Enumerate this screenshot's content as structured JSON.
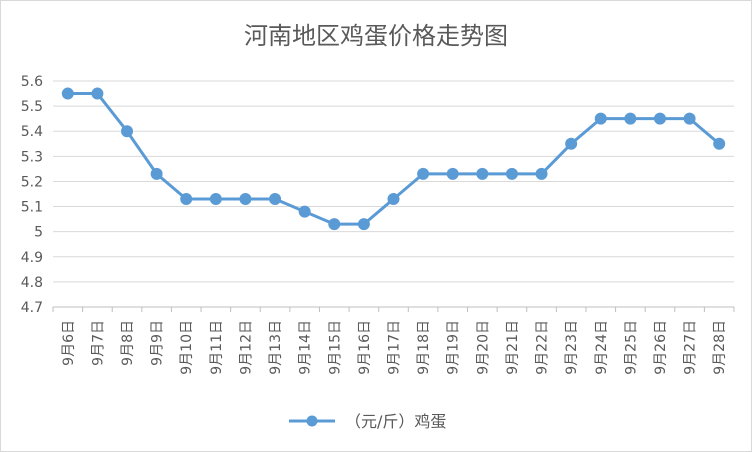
{
  "chart_data": {
    "type": "line",
    "title": "河南地区鸡蛋价格走势图",
    "xlabel": "",
    "ylabel": "",
    "ylim": [
      4.7,
      5.6
    ],
    "yticks": [
      "5.6",
      "5.5",
      "5.4",
      "5.3",
      "5.2",
      "5.1",
      "5",
      "4.9",
      "4.8",
      "4.7"
    ],
    "categories": [
      "9月6日",
      "9月7日",
      "9月8日",
      "9月9日",
      "9月10日",
      "9月11日",
      "9月12日",
      "9月13日",
      "9月14日",
      "9月15日",
      "9月16日",
      "9月17日",
      "9月18日",
      "9月19日",
      "9月20日",
      "9月21日",
      "9月22日",
      "9月23日",
      "9月24日",
      "9月25日",
      "9月26日",
      "9月27日",
      "9月28日"
    ],
    "series": [
      {
        "name": "（元/斤）鸡蛋",
        "values": [
          5.55,
          5.55,
          5.4,
          5.23,
          5.13,
          5.13,
          5.13,
          5.13,
          5.08,
          5.03,
          5.03,
          5.13,
          5.23,
          5.23,
          5.23,
          5.23,
          5.23,
          5.35,
          5.45,
          5.45,
          5.45,
          5.45,
          5.35
        ]
      }
    ],
    "grid": true,
    "legend_position": "bottom",
    "line_color": "#5b9bd5"
  }
}
